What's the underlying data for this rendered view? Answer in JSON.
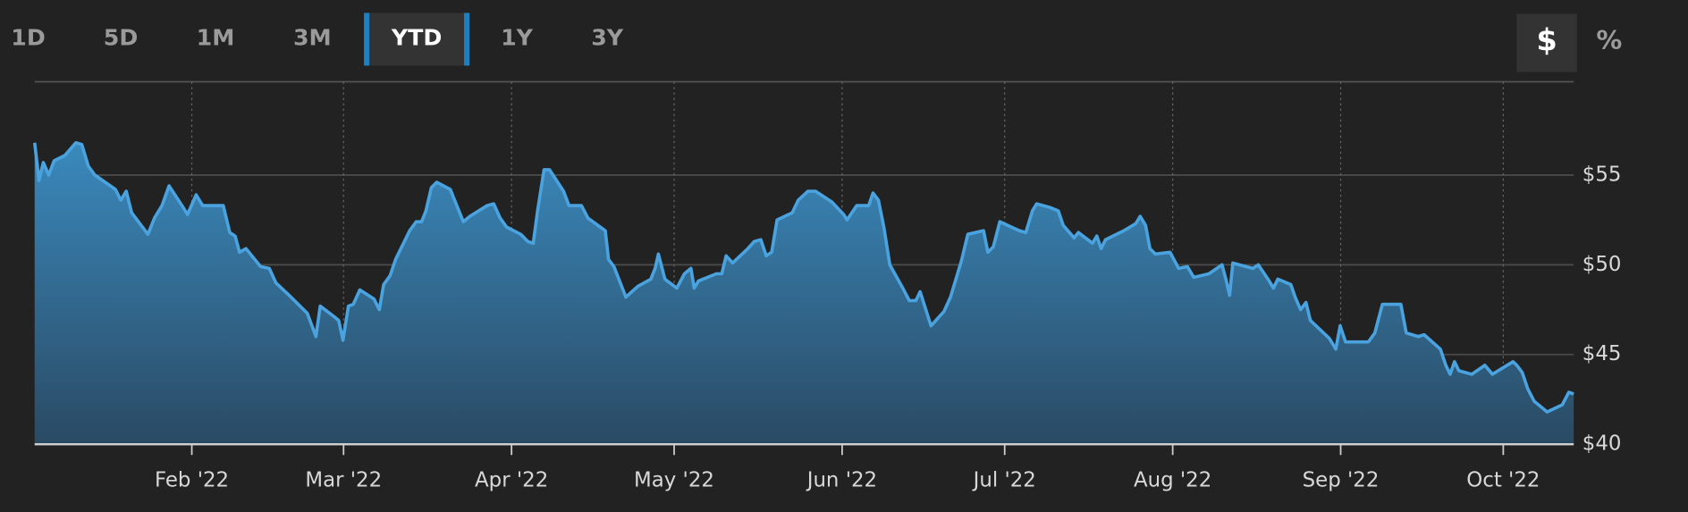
{
  "range_buttons": [
    {
      "label": "1D"
    },
    {
      "label": "5D"
    },
    {
      "label": "1M"
    },
    {
      "label": "3M"
    },
    {
      "label": "YTD",
      "selected": true
    },
    {
      "label": "1Y"
    },
    {
      "label": "3Y"
    }
  ],
  "unit_buttons": [
    {
      "label": "$",
      "selected": true
    },
    {
      "label": "%"
    }
  ],
  "chart_data": {
    "type": "area",
    "color": "#4aa3df",
    "x": [
      3,
      3.8,
      4.6,
      5.6,
      6.6,
      8.6,
      10.6,
      11.7,
      12.9,
      14.1,
      16.5,
      17.9,
      18.9,
      19.9,
      20.9,
      23.9,
      25.1,
      26.5,
      27.8,
      30.4,
      31.2,
      32.8,
      34.0,
      37.8,
      39.0,
      40.0,
      40.8,
      42.0,
      44.7,
      46.3,
      47.5,
      50.3,
      53.3,
      54.3,
      54.9,
      55.7,
      58.3,
      59.1,
      59.9,
      60.9,
      61.8,
      63.0,
      65.6,
      66.6,
      67.4,
      68.6,
      69.6,
      72.2,
      73.4,
      74.4,
      75.2,
      76.2,
      77.2,
      79.7,
      80.9,
      82.1,
      83.3,
      86.5,
      87.7,
      88.9,
      90.1,
      92.7,
      94.0,
      95.0,
      95.8,
      97.0,
      98.0,
      100.6,
      101.6,
      103.9,
      105.1,
      108.3,
      108.9,
      109.9,
      112.1,
      114.3,
      116.7,
      117.5,
      118.1,
      119.3,
      121.5,
      122.9,
      124.1,
      124.7,
      125.5,
      128.8,
      129.8,
      130.6,
      131.8,
      134.6,
      135.8,
      137.0,
      138.0,
      139.0,
      140.0,
      142.8,
      143.9,
      145.7,
      147.1,
      150.1,
      152.3,
      152.9,
      154.7,
      156.9,
      157.7,
      158.7,
      159.7,
      160.8,
      163.2,
      164.4,
      165.6,
      166.4,
      168.4,
      170.8,
      172.0,
      174.0,
      175.2,
      178.1,
      178.9,
      179.9,
      181.1,
      184.7,
      185.9,
      187.1,
      187.9,
      190.3,
      191.9,
      192.8,
      194.8,
      195.6,
      198.2,
      199.0,
      199.8,
      200.6,
      204.0,
      206.2,
      207.0,
      208.0,
      208.8,
      209.8,
      212.5,
      214.1,
      215.7,
      216.9,
      219.7,
      222.1,
      222.9,
      223.5,
      224.1,
      227.8,
      228.8,
      230.8,
      231.6,
      232.4,
      234.8,
      235.6,
      236.6,
      237.6,
      238.4,
      241.9,
      243.1,
      243.9,
      244.9,
      249.1,
      250.3,
      251.7,
      255.1,
      256.1,
      258.3,
      259.4,
      262.4,
      263.4,
      264.2,
      265.0,
      265.8,
      268.2,
      270.6,
      272.0,
      275.8,
      276.5,
      277.5,
      278.5,
      279.7,
      282.1,
      284.9,
      286.1,
      287
    ],
    "values": [
      56.8,
      54.7,
      55.7,
      55.0,
      55.8,
      56.1,
      56.8,
      56.7,
      55.5,
      55.0,
      54.5,
      54.2,
      53.6,
      54.1,
      52.9,
      51.7,
      52.6,
      53.3,
      54.4,
      53.2,
      52.8,
      53.9,
      53.3,
      53.3,
      51.8,
      51.6,
      50.7,
      50.9,
      49.9,
      49.8,
      49.0,
      48.2,
      47.3,
      46.5,
      46.0,
      47.7,
      47.1,
      46.9,
      45.8,
      47.7,
      47.8,
      48.6,
      48.1,
      47.5,
      48.9,
      49.4,
      50.3,
      51.9,
      52.4,
      52.4,
      53.0,
      54.3,
      54.6,
      54.2,
      53.3,
      52.4,
      52.7,
      53.3,
      53.4,
      52.6,
      52.1,
      51.7,
      51.3,
      51.2,
      53.0,
      55.3,
      55.3,
      54.1,
      53.3,
      53.3,
      52.6,
      51.9,
      50.3,
      49.9,
      48.2,
      48.8,
      49.2,
      49.8,
      50.6,
      49.2,
      48.7,
      49.5,
      49.8,
      48.7,
      49.1,
      49.5,
      49.5,
      50.5,
      50.1,
      50.9,
      51.3,
      51.4,
      50.5,
      50.7,
      52.5,
      52.9,
      53.6,
      54.1,
      54.1,
      53.5,
      52.8,
      52.5,
      53.3,
      53.3,
      54.0,
      53.6,
      52.1,
      50.0,
      48.7,
      48.0,
      48.0,
      48.5,
      46.6,
      47.4,
      48.2,
      50.2,
      51.7,
      51.9,
      50.7,
      51.0,
      52.4,
      51.9,
      51.8,
      53.0,
      53.4,
      53.2,
      53.0,
      52.2,
      51.5,
      51.8,
      51.2,
      51.6,
      50.9,
      51.4,
      51.9,
      52.3,
      52.7,
      52.2,
      50.9,
      50.6,
      50.7,
      49.8,
      49.9,
      49.3,
      49.5,
      50.0,
      49.1,
      48.3,
      50.1,
      49.8,
      50.0,
      49.1,
      48.7,
      49.2,
      48.9,
      48.2,
      47.5,
      47.9,
      46.9,
      45.9,
      45.3,
      46.6,
      45.7,
      45.7,
      46.2,
      47.8,
      47.8,
      46.2,
      46.0,
      46.1,
      45.3,
      44.4,
      43.9,
      44.6,
      44.1,
      43.9,
      44.4,
      43.9,
      44.6,
      44.4,
      44.0,
      43.1,
      42.4,
      41.8,
      42.2,
      42.9,
      42.8
    ],
    "xlim": [
      3,
      287
    ],
    "xticks": [
      {
        "value": 32,
        "label": "Feb '22"
      },
      {
        "value": 60,
        "label": "Mar '22"
      },
      {
        "value": 91,
        "label": "Apr '22"
      },
      {
        "value": 121,
        "label": "May '22"
      },
      {
        "value": 152,
        "label": "Jun '22"
      },
      {
        "value": 182,
        "label": "Jul '22"
      },
      {
        "value": 213,
        "label": "Aug '22"
      },
      {
        "value": 244,
        "label": "Sep '22"
      },
      {
        "value": 274,
        "label": "Oct '22"
      }
    ],
    "ylim": [
      40,
      60.2
    ],
    "yticks": [
      {
        "value": 40,
        "label": "$40"
      },
      {
        "value": 45,
        "label": "$45"
      },
      {
        "value": 50,
        "label": "$50"
      },
      {
        "value": 55,
        "label": "$55"
      }
    ],
    "grid": true
  }
}
